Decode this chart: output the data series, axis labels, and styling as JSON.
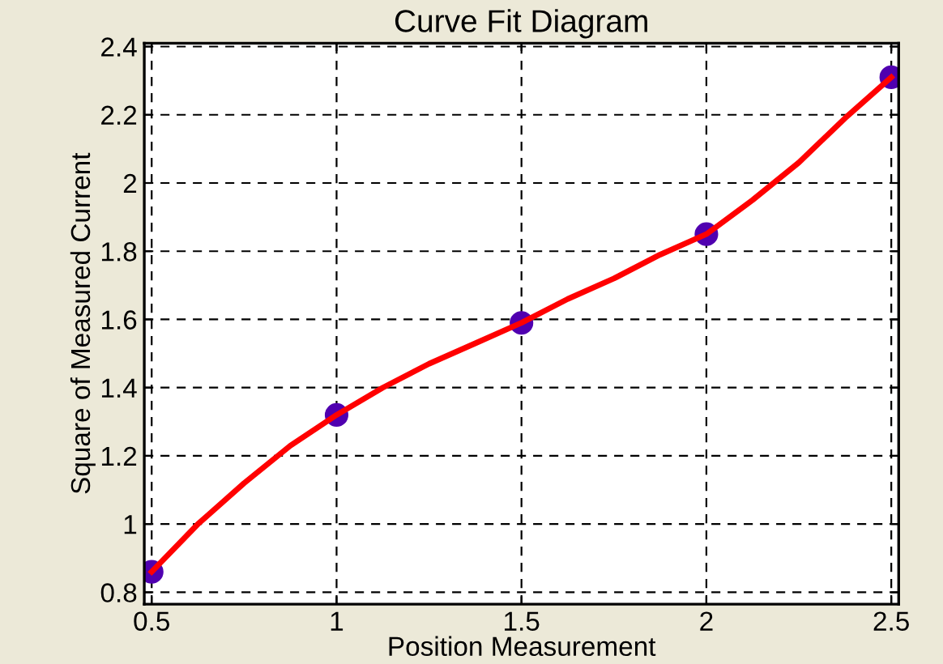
{
  "chart_data": {
    "type": "scatter",
    "title": "Curve Fit Diagram",
    "xlabel": "Position Measurement",
    "ylabel": "Square of Measured Current",
    "series": [
      {
        "type": "line",
        "color": "#ff0000",
        "marker": "none",
        "line_style": "solid",
        "x": [
          0.5,
          0.625,
          0.75,
          0.875,
          1.0,
          1.125,
          1.25,
          1.375,
          1.5,
          1.625,
          1.75,
          1.875,
          2.0,
          2.125,
          2.25,
          2.375,
          2.5
        ],
        "values": [
          0.86,
          1.0,
          1.12,
          1.23,
          1.32,
          1.4,
          1.47,
          1.53,
          1.59,
          1.66,
          1.72,
          1.79,
          1.85,
          1.95,
          2.06,
          2.19,
          2.31
        ]
      },
      {
        "color": "#5000b0",
        "marker": "circle",
        "x": [
          0.5,
          1.0,
          1.5,
          2.0,
          2.5
        ],
        "values": [
          0.86,
          1.32,
          1.59,
          1.85,
          2.31
        ]
      }
    ],
    "xlim": [
      0.48,
      2.52
    ],
    "ylim": [
      0.765,
      2.41
    ],
    "xticks": [
      0.5,
      1,
      1.5,
      2,
      2.5
    ],
    "yticks": [
      0.8,
      1,
      1.2,
      1.4,
      1.6,
      1.8,
      2,
      2.2,
      2.4
    ],
    "grid": true
  }
}
